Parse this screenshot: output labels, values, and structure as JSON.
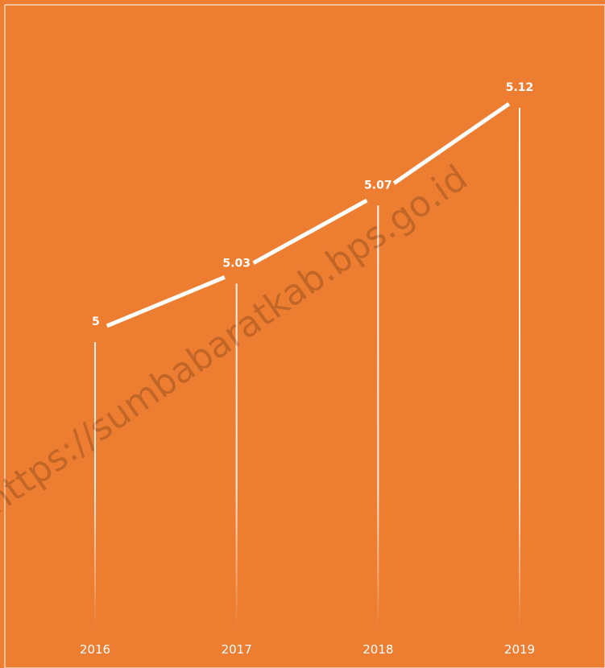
{
  "chart_data": {
    "type": "line",
    "categories": [
      "2016",
      "2017",
      "2018",
      "2019"
    ],
    "values": [
      5,
      5.03,
      5.07,
      5.12
    ],
    "data_labels": [
      "5",
      "5.03",
      "5.07",
      "5.12"
    ],
    "title": "",
    "xlabel": "",
    "ylabel": "",
    "ylim": [
      4.85,
      5.12
    ],
    "grid": false,
    "legend": "none",
    "drop_lines": true
  },
  "watermark": {
    "text": "https://sumbabaratkab.bps.go.id"
  },
  "colors": {
    "background": "#ED7D31",
    "line": "#FFFFFF",
    "text": "#FFFFFF",
    "frame": "#FFFFFF"
  }
}
